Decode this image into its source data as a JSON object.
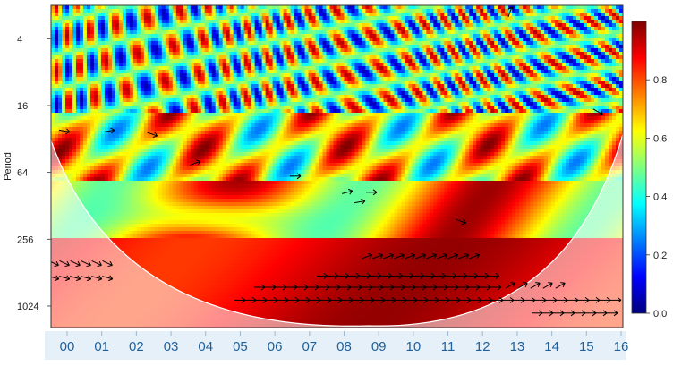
{
  "chart_data": {
    "type": "heatmap",
    "title": "",
    "xlabel": "",
    "ylabel": "Period",
    "x_ticks": [
      "00",
      "01",
      "02",
      "03",
      "04",
      "05",
      "06",
      "07",
      "08",
      "09",
      "10",
      "11",
      "12",
      "13",
      "14",
      "15",
      "16"
    ],
    "y_ticks": [
      4,
      16,
      64,
      256,
      1024
    ],
    "y_scale": "log2",
    "y_reversed": true,
    "ylim": [
      2,
      1600
    ],
    "colorbar": {
      "ticks": [
        0.0,
        0.2,
        0.4,
        0.6,
        0.8
      ],
      "range": [
        0,
        1
      ],
      "colors": [
        "#00007f",
        "#0000ff",
        "#0080ff",
        "#00ffff",
        "#80ff80",
        "#ffff00",
        "#ff8000",
        "#ff0000",
        "#7f0000"
      ]
    },
    "cone_of_influence": true,
    "arrows_present": true,
    "colors": {
      "xaxis_band": "#e6f0f8",
      "xaxis_text": "#1f5f9a"
    }
  }
}
